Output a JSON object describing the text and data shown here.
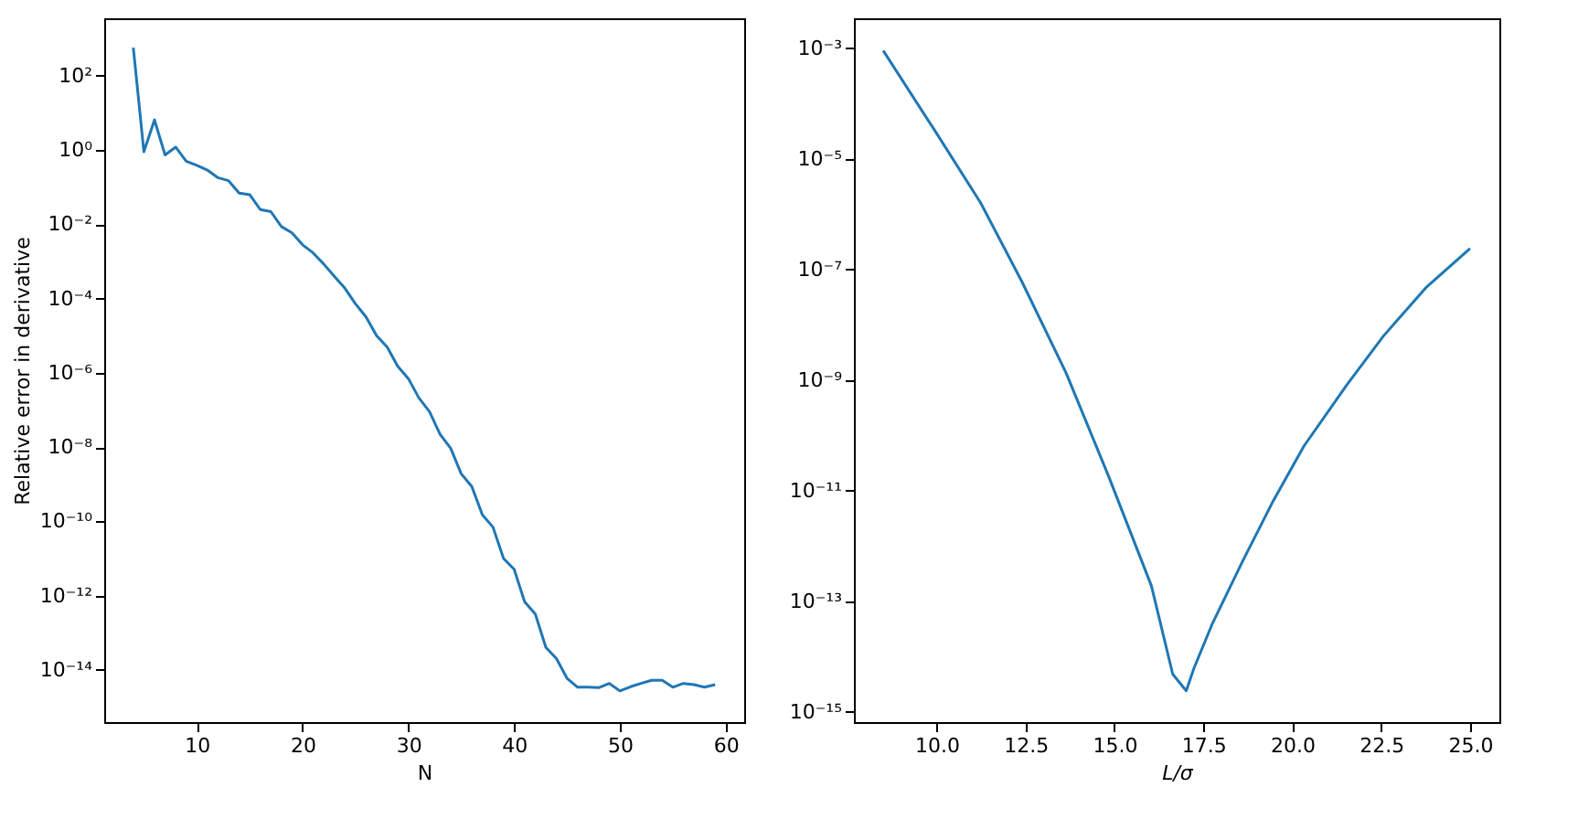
{
  "chart_data": [
    {
      "type": "line",
      "xlabel": "N",
      "ylabel": "Relative error in derivative",
      "log": "y",
      "xlim": [
        1.25,
        61.75
      ],
      "ylim": [
        3.9e-16,
        3548
      ],
      "xticks": [
        10,
        20,
        30,
        40,
        50,
        60
      ],
      "yticks": [
        {
          "value": 100,
          "label": "10²"
        },
        {
          "value": 1,
          "label": "10⁰"
        },
        {
          "value": 0.01,
          "label": "10⁻²"
        },
        {
          "value": 0.0001,
          "label": "10⁻⁴"
        },
        {
          "value": 1e-06,
          "label": "10⁻⁶"
        },
        {
          "value": 1e-08,
          "label": "10⁻⁸"
        },
        {
          "value": 1e-10,
          "label": "10⁻¹⁰"
        },
        {
          "value": 1e-12,
          "label": "10⁻¹²"
        },
        {
          "value": 1e-14,
          "label": "10⁻¹⁴"
        }
      ],
      "series": [
        {
          "color": "#1f77b4",
          "x": [
            4,
            5,
            6,
            7,
            8,
            9,
            10,
            11,
            12,
            13,
            14,
            15,
            16,
            17,
            18,
            19,
            20,
            21,
            22,
            23,
            24,
            25,
            26,
            27,
            28,
            29,
            30,
            31,
            32,
            33,
            34,
            35,
            36,
            37,
            38,
            39,
            40,
            41,
            42,
            43,
            44,
            45,
            46,
            47,
            48,
            49,
            50,
            51,
            52,
            53,
            54,
            55,
            56,
            57,
            58,
            59
          ],
          "values": [
            575,
            0.9,
            6.5,
            0.74,
            1.2,
            0.5,
            0.39,
            0.29,
            0.18,
            0.15,
            0.069,
            0.063,
            0.025,
            0.022,
            0.0087,
            0.0059,
            0.0028,
            0.0017,
            0.00085,
            0.0004,
            0.00019,
            7.2e-05,
            3.2e-05,
            1e-05,
            4.9e-06,
            1.5e-06,
            7e-07,
            2.1e-07,
            9e-08,
            2.2e-08,
            9.3e-09,
            1.9e-09,
            8.7e-10,
            1.5e-10,
            7e-11,
            1e-11,
            5.1e-12,
            6.7e-13,
            3.2e-13,
            4e-14,
            2e-14,
            5.9e-15,
            3.4e-15,
            3.4e-15,
            3.3e-15,
            4.3e-15,
            2.7e-15,
            3.5e-15,
            4.3e-15,
            5.2e-15,
            5.2e-15,
            3.4e-15,
            4.3e-15,
            4e-15,
            3.4e-15,
            4e-15
          ]
        }
      ]
    },
    {
      "type": "line",
      "xlabel": "L/σ",
      "log": "y",
      "xlim": [
        7.675,
        25.825
      ],
      "ylim": [
        6.5e-16,
        0.0035
      ],
      "xticks": [
        {
          "value": 10,
          "label": "10.0"
        },
        12.5,
        {
          "value": 15,
          "label": "15.0"
        },
        17.5,
        {
          "value": 20,
          "label": "20.0"
        },
        22.5,
        {
          "value": 25,
          "label": "25.0"
        }
      ],
      "yticks": [
        {
          "value": 0.001,
          "label": "10⁻³"
        },
        {
          "value": 1e-05,
          "label": "10⁻⁵"
        },
        {
          "value": 1e-07,
          "label": "10⁻⁷"
        },
        {
          "value": 1e-09,
          "label": "10⁻⁹"
        },
        {
          "value": 1e-11,
          "label": "10⁻¹¹"
        },
        {
          "value": 1e-13,
          "label": "10⁻¹³"
        },
        {
          "value": 1e-15,
          "label": "10⁻¹⁵"
        }
      ],
      "series": [
        {
          "color": "#1f77b4",
          "x": [
            8.5,
            10.0,
            11.24,
            12.4,
            13.64,
            14.84,
            16.04,
            16.64,
            17.02,
            17.24,
            17.76,
            18.6,
            19.47,
            20.33,
            21.53,
            22.56,
            23.76,
            25.0
          ],
          "values": [
            0.00091,
            2.9e-05,
            1.6e-06,
            6e-08,
            1.35e-09,
            1.8e-11,
            1.9e-13,
            4.8e-15,
            2.4e-15,
            6.2e-15,
            4e-14,
            5.2e-13,
            6.6e-12,
            6.4e-11,
            8.1e-10,
            6.2e-09,
            4.7e-08,
            2.4e-07
          ]
        }
      ]
    }
  ]
}
